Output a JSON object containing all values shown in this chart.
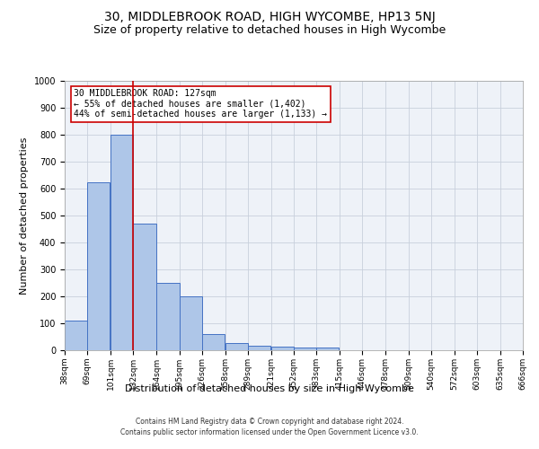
{
  "title": "30, MIDDLEBROOK ROAD, HIGH WYCOMBE, HP13 5NJ",
  "subtitle": "Size of property relative to detached houses in High Wycombe",
  "xlabel": "Distribution of detached houses by size in High Wycombe",
  "ylabel": "Number of detached properties",
  "footer_line1": "Contains HM Land Registry data © Crown copyright and database right 2024.",
  "footer_line2": "Contains public sector information licensed under the Open Government Licence v3.0.",
  "bar_left_edges": [
    38,
    69,
    101,
    132,
    164,
    195,
    226,
    258,
    289,
    321,
    352,
    383,
    415,
    446,
    478,
    509,
    540,
    572,
    603,
    635
  ],
  "bar_heights": [
    110,
    625,
    800,
    470,
    250,
    200,
    60,
    28,
    18,
    12,
    10,
    9,
    0,
    0,
    0,
    0,
    0,
    0,
    0,
    0
  ],
  "bin_width": 31,
  "bar_color": "#aec6e8",
  "bar_edge_color": "#4472c4",
  "tick_labels": [
    "38sqm",
    "69sqm",
    "101sqm",
    "132sqm",
    "164sqm",
    "195sqm",
    "226sqm",
    "258sqm",
    "289sqm",
    "321sqm",
    "352sqm",
    "383sqm",
    "415sqm",
    "446sqm",
    "478sqm",
    "509sqm",
    "540sqm",
    "572sqm",
    "603sqm",
    "635sqm",
    "666sqm"
  ],
  "ylim": [
    0,
    1000
  ],
  "yticks": [
    0,
    100,
    200,
    300,
    400,
    500,
    600,
    700,
    800,
    900,
    1000
  ],
  "vline_x": 132,
  "vline_color": "#cc0000",
  "annotation_text": "30 MIDDLEBROOK ROAD: 127sqm\n← 55% of detached houses are smaller (1,402)\n44% of semi-detached houses are larger (1,133) →",
  "bg_color": "#ffffff",
  "plot_bg_color": "#eef2f8",
  "grid_color": "#c8d0dc",
  "title_fontsize": 10,
  "subtitle_fontsize": 9,
  "axis_label_fontsize": 8,
  "tick_fontsize": 6.5,
  "footer_fontsize": 5.5
}
